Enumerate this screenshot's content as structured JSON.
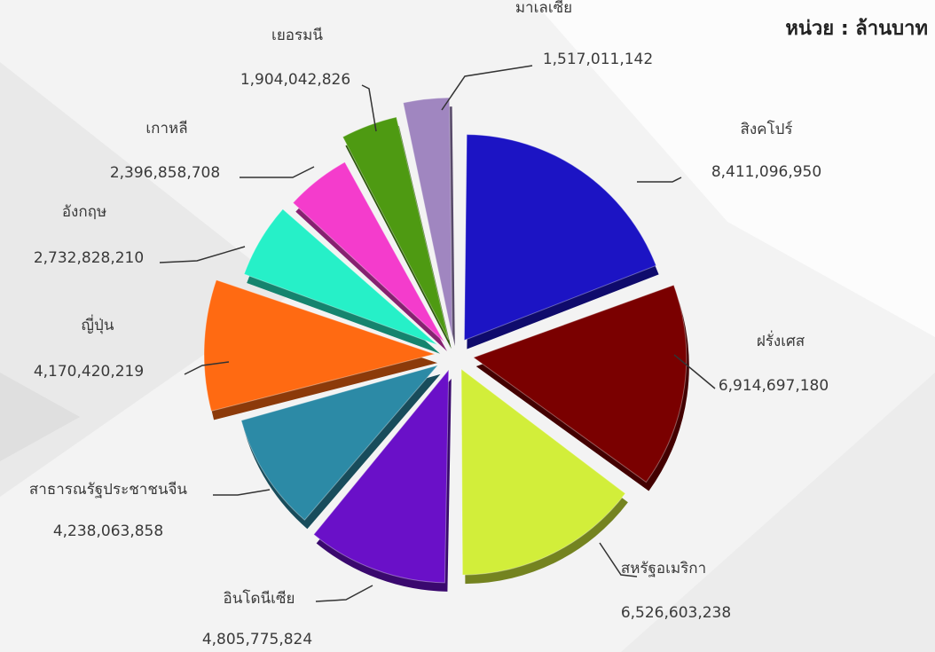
{
  "unit_label": "หน่วย : ล้านบาท",
  "chart_data": {
    "type": "pie",
    "title": "",
    "legend": "none",
    "slices": [
      {
        "name": "สิงคโปร์",
        "value": 8411096950,
        "value_label": "8,411,096,950",
        "color": "#1c14c4"
      },
      {
        "name": "ฝรั่งเศส",
        "value": 6914697180,
        "value_label": "6,914,697,180",
        "color": "#7a0000"
      },
      {
        "name": "สหรัฐอเมริกา",
        "value": 6526603238,
        "value_label": "6,526,603,238",
        "color": "#d2ee3a"
      },
      {
        "name": "อินโดนีเซีย",
        "value": 4805775824,
        "value_label": "4,805,775,824",
        "color": "#6a10c8"
      },
      {
        "name": "สาธารณรัฐประชาชนจีน",
        "value": 4238063858,
        "value_label": "4,238,063,858",
        "color": "#2c8aa6"
      },
      {
        "name": "ญี่ปุ่น",
        "value": 4170420219,
        "value_label": "4,170,420,219",
        "color": "#ff6a12"
      },
      {
        "name": "อังกฤษ",
        "value": 2732828210,
        "value_label": "2,732,828,210",
        "color": "#26f0c8"
      },
      {
        "name": "เกาหลี",
        "value": 2396858708,
        "value_label": "2,396,858,708",
        "color": "#f43ccc"
      },
      {
        "name": "เยอรมนี",
        "value": 1904042826,
        "value_label": "1,904,042,826",
        "color": "#4e9a12"
      },
      {
        "name": "มาเลเซีย",
        "value": 1517011142,
        "value_label": "1,517,011,142",
        "color": "#a086c0"
      }
    ]
  }
}
